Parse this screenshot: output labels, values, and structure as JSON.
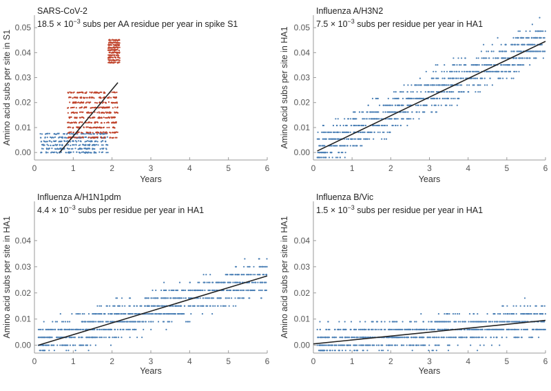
{
  "figure": {
    "background": "#ffffff"
  },
  "colors": {
    "blue": "#4a7fb5",
    "red": "#c0442c",
    "fit": "#222222"
  },
  "chart_data": [
    {
      "type": "scatter",
      "title_line1": "SARS-CoV-2",
      "rate_value": "18.5",
      "rate_suffix": " subs per AA residue per year in spike S1",
      "xlabel": "Years",
      "ylabel": "Amino acid subs per site in S1",
      "xlim": [
        0,
        6
      ],
      "ylim": [
        -0.003,
        0.055
      ],
      "x_ticks": [
        0,
        1,
        2,
        3,
        4,
        5,
        6
      ],
      "y_ticks": [
        0.0,
        0.01,
        0.02,
        0.03,
        0.04,
        0.05
      ],
      "y_tick_labels": [
        "0.00",
        "0.01",
        "0.02",
        "0.03",
        "0.04",
        "0.05"
      ],
      "fit": {
        "x0": 0.65,
        "y0": 0.0,
        "x1": 2.15,
        "y1": 0.028
      },
      "series": [
        {
          "color": "blue",
          "x_range": [
            0.15,
            1.9
          ],
          "levels": [
            0.0,
            0.0015,
            0.003,
            0.0045,
            0.006,
            0.0075
          ],
          "density": 60
        },
        {
          "color": "red",
          "x_range": [
            0.85,
            2.15
          ],
          "levels": [
            0.006,
            0.008,
            0.01,
            0.012,
            0.014,
            0.016,
            0.018,
            0.02,
            0.022,
            0.024
          ],
          "density": 55
        },
        {
          "color": "red",
          "x_range": [
            1.9,
            2.2
          ],
          "levels": [
            0.036,
            0.037,
            0.038,
            0.039,
            0.04,
            0.041,
            0.042,
            0.043,
            0.044,
            0.045
          ],
          "density": 25
        }
      ]
    },
    {
      "type": "scatter",
      "title_line1": "Influenza A/H3N2",
      "rate_value": "7.5",
      "rate_suffix": " subs per residue per year in HA1",
      "xlabel": "Years",
      "ylabel": "Amino acid subs per site in HA1",
      "xlim": [
        0,
        6
      ],
      "ylim": [
        -0.003,
        0.055
      ],
      "x_ticks": [
        0,
        1,
        2,
        3,
        4,
        5,
        6
      ],
      "y_ticks": [
        0.0,
        0.01,
        0.02,
        0.03,
        0.04,
        0.05
      ],
      "y_tick_labels": [
        "0.00",
        "0.01",
        "0.02",
        "0.03",
        "0.04",
        "0.05"
      ],
      "fit": {
        "x0": 0.1,
        "y0": 0.0006,
        "x1": 6.0,
        "y1": 0.0445
      },
      "series": [
        {
          "color": "blue",
          "x_range": [
            0.1,
            6.0
          ],
          "slope": 0.0075,
          "intercept": 0.0005,
          "spread": 0.008,
          "step": 0.0027,
          "count": 1150
        }
      ]
    },
    {
      "type": "scatter",
      "title_line1": "Influenza A/H1N1pdm",
      "rate_value": "4.4",
      "rate_suffix": " subs per residue per year in HA1",
      "xlabel": "Years",
      "ylabel": "Amino acid subs per site in HA1",
      "xlim": [
        0,
        6
      ],
      "ylim": [
        -0.003,
        0.055
      ],
      "x_ticks": [
        0,
        1,
        2,
        3,
        4,
        5,
        6
      ],
      "y_ticks": [
        0.0,
        0.01,
        0.02,
        0.03,
        0.04
      ],
      "y_tick_labels": [
        "0.00",
        "0.01",
        "0.02",
        "0.03",
        "0.04"
      ],
      "fit": {
        "x0": 0.1,
        "y0": 0.0,
        "x1": 6.0,
        "y1": 0.0265
      },
      "series": [
        {
          "color": "blue",
          "x_range": [
            0.1,
            6.0
          ],
          "slope": 0.0044,
          "intercept": 0.0,
          "spread": 0.007,
          "step": 0.003,
          "count": 1050
        }
      ]
    },
    {
      "type": "scatter",
      "title_line1": "Influenza B/Vic",
      "rate_value": "1.5",
      "rate_suffix": " subs per residue per year in HA1",
      "xlabel": "Years",
      "ylabel": "Amino acid subs per site in HA1",
      "xlim": [
        0,
        6
      ],
      "ylim": [
        -0.003,
        0.055
      ],
      "x_ticks": [
        0,
        1,
        2,
        3,
        4,
        5,
        6
      ],
      "y_ticks": [
        0.0,
        0.01,
        0.02,
        0.03,
        0.04
      ],
      "y_tick_labels": [
        "0.00",
        "0.01",
        "0.02",
        "0.03",
        "0.04"
      ],
      "fit": {
        "x0": 0.0,
        "y0": 0.0005,
        "x1": 6.0,
        "y1": 0.0095
      },
      "series": [
        {
          "color": "blue",
          "x_range": [
            0.1,
            6.0
          ],
          "slope": 0.0015,
          "intercept": 0.0005,
          "spread": 0.006,
          "step": 0.003,
          "count": 1000
        }
      ]
    }
  ]
}
